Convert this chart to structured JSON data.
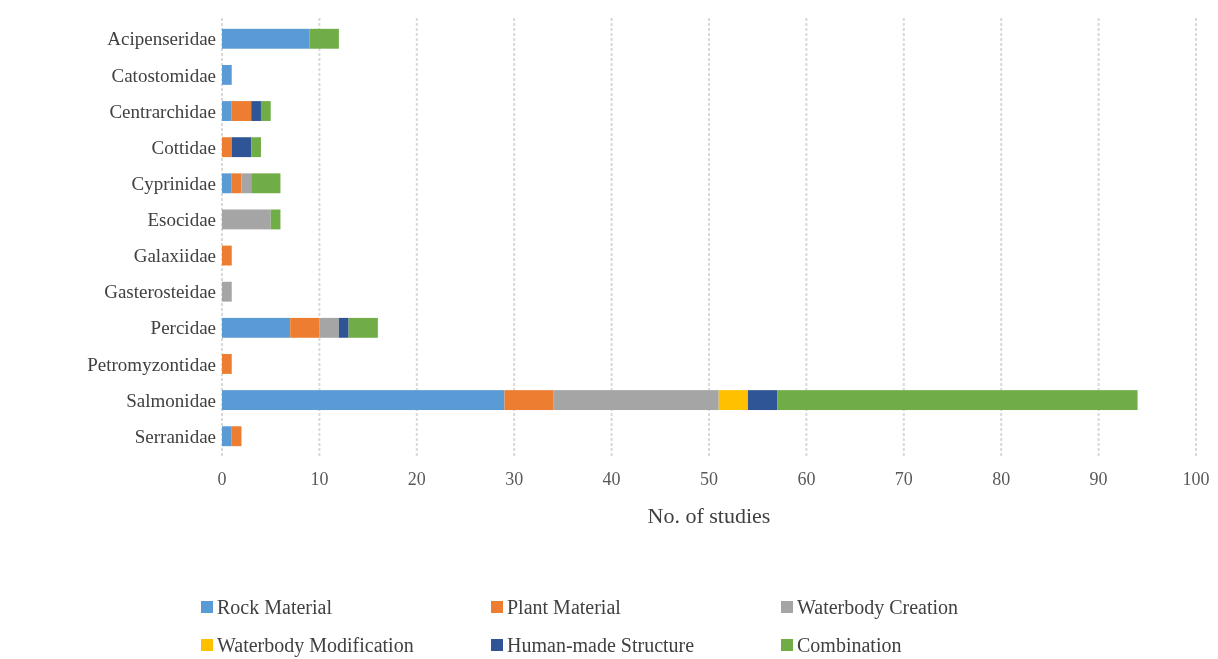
{
  "chart_data": {
    "type": "bar",
    "orientation": "horizontal",
    "stacked": true,
    "xlabel": "No. of studies",
    "categories": [
      "Acipenseridae",
      "Catostomidae",
      "Centrarchidae",
      "Cottidae",
      "Cyprinidae",
      "Esocidae",
      "Galaxiidae",
      "Gasterosteidae",
      "Percidae",
      "Petromyzontidae",
      "Salmonidae",
      "Serranidae"
    ],
    "series": [
      {
        "name": "Rock Material",
        "color": "#5b9bd5",
        "values": [
          9,
          1,
          1,
          0,
          1,
          0,
          0,
          0,
          7,
          0,
          29,
          1
        ]
      },
      {
        "name": "Plant Material",
        "color": "#ed7d31",
        "values": [
          0,
          0,
          2,
          1,
          1,
          0,
          1,
          0,
          3,
          1,
          5,
          1
        ]
      },
      {
        "name": "Waterbody Creation",
        "color": "#a5a5a5",
        "values": [
          0,
          0,
          0,
          0,
          1,
          5,
          0,
          1,
          2,
          0,
          17,
          0
        ]
      },
      {
        "name": "Waterbody Modification",
        "color": "#ffc000",
        "values": [
          0,
          0,
          0,
          0,
          0,
          0,
          0,
          0,
          0,
          0,
          3,
          0
        ]
      },
      {
        "name": "Human-made Structure",
        "color": "#2f5597",
        "values": [
          0,
          0,
          1,
          2,
          0,
          0,
          0,
          0,
          1,
          0,
          3,
          0
        ]
      },
      {
        "name": "Combination",
        "color": "#70ad47",
        "values": [
          3,
          0,
          1,
          1,
          3,
          1,
          0,
          0,
          3,
          0,
          37,
          0
        ]
      }
    ],
    "xlim": [
      0,
      100
    ],
    "xticks": [
      0,
      10,
      20,
      30,
      40,
      50,
      60,
      70,
      80,
      90,
      100
    ],
    "grid": "x",
    "legend": "bottom"
  }
}
